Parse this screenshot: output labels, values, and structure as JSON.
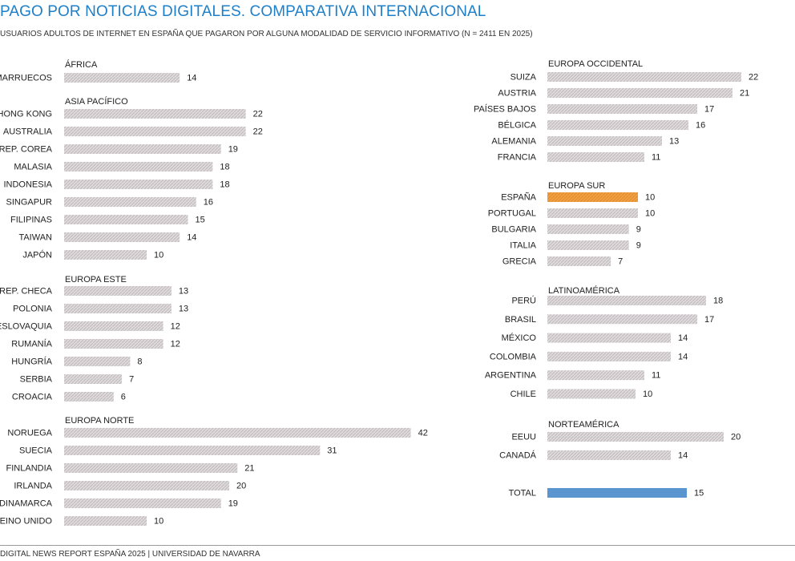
{
  "title": "PAGO POR NOTICIAS DIGITALES. COMPARATIVA INTERNACIONAL",
  "subtitle": "USUARIOS ADULTOS DE INTERNET EN ESPAÑA QUE PAGARON POR ALGUNA MODALIDAD DE SERVICIO INFORMATIVO (N = 2411 EN 2025)",
  "footer": "DIGITAL NEWS REPORT ESPAÑA 2025 | UNIVERSIDAD DE NAVARRA",
  "colors": {
    "bar": "#d6d6d6",
    "bar_hatch": "#c9b9c1",
    "highlight_spain": "#f0a045",
    "total": "#5b95d0"
  },
  "chart_data": {
    "type": "bar",
    "orientation": "horizontal",
    "unit": "%",
    "groups": [
      {
        "name": "ÁFRICA",
        "categories": [
          "MARRUECOS"
        ],
        "values": [
          14
        ]
      },
      {
        "name": "ASIA PACÍFICO",
        "categories": [
          "HONG KONG",
          "AUSTRALIA",
          "REP. COREA",
          "MALASIA",
          "INDONESIA",
          "SINGAPUR",
          "FILIPINAS",
          "TAIWAN",
          "JAPÓN"
        ],
        "values": [
          22,
          22,
          19,
          18,
          18,
          16,
          15,
          14,
          10
        ]
      },
      {
        "name": "EUROPA ESTE",
        "categories": [
          "REP. CHECA",
          "POLONIA",
          "ESLOVAQUIA",
          "RUMANÍA",
          "HUNGRÍA",
          "SERBIA",
          "CROACIA"
        ],
        "values": [
          13,
          13,
          12,
          12,
          8,
          7,
          6
        ]
      },
      {
        "name": "EUROPA NORTE",
        "categories": [
          "NORUEGA",
          "SUECIA",
          "FINLANDIA",
          "IRLANDA",
          "DINAMARCA",
          "REINO UNIDO"
        ],
        "values": [
          42,
          31,
          21,
          20,
          19,
          10
        ]
      },
      {
        "name": "EUROPA OCCIDENTAL",
        "categories": [
          "SUIZA",
          "AUSTRIA",
          "PAÍSES BAJOS",
          "BÉLGICA",
          "ALEMANIA",
          "FRANCIA"
        ],
        "values": [
          22,
          21,
          17,
          16,
          13,
          11
        ]
      },
      {
        "name": "EUROPA SUR",
        "categories": [
          "ESPAÑA",
          "PORTUGAL",
          "BULGARIA",
          "ITALIA",
          "GRECIA"
        ],
        "values": [
          10,
          10,
          9,
          9,
          7
        ],
        "highlight": "ESPAÑA"
      },
      {
        "name": "LATINOAMÉRICA",
        "categories": [
          "PERÚ",
          "BRASIL",
          "MÉXICO",
          "COLOMBIA",
          "ARGENTINA",
          "CHILE"
        ],
        "values": [
          18,
          17,
          14,
          14,
          11,
          10
        ]
      },
      {
        "name": "NORTEAMÉRICA",
        "categories": [
          "EEUU",
          "CANADÁ"
        ],
        "values": [
          20,
          14
        ]
      },
      {
        "name": "",
        "categories": [
          "TOTAL"
        ],
        "values": [
          15
        ],
        "highlight": "TOTAL"
      }
    ]
  }
}
